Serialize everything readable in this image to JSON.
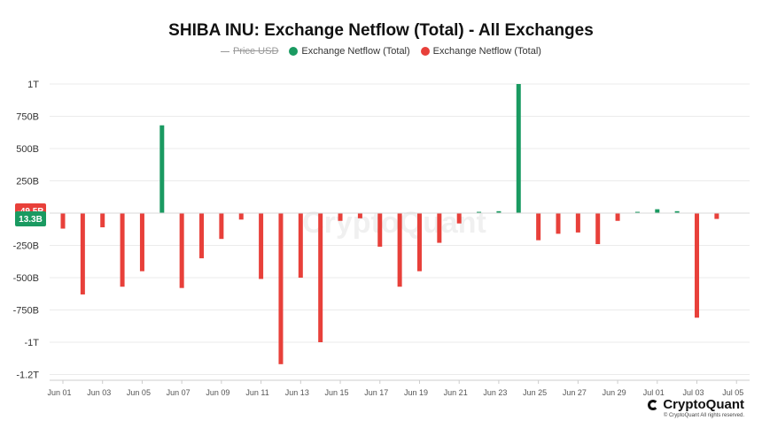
{
  "chart_data": {
    "type": "bar",
    "title": "SHIBA INU: Exchange Netflow (Total) - All Exchanges",
    "legend": [
      {
        "name": "Price USD",
        "style": "line",
        "color": "#999999",
        "hidden": true
      },
      {
        "name": "Exchange Netflow (Total)",
        "color": "#1a9a61"
      },
      {
        "name": "Exchange Netflow (Total)",
        "color": "#e8403a"
      }
    ],
    "x_tick_labels": [
      "Jun 01",
      "Jun 03",
      "Jun 05",
      "Jun 07",
      "Jun 09",
      "Jun 11",
      "Jun 13",
      "Jun 15",
      "Jun 17",
      "Jun 19",
      "Jun 21",
      "Jun 23",
      "Jun 25",
      "Jun 27",
      "Jun 29",
      "Jul 01",
      "Jul 03",
      "Jul 05"
    ],
    "y_tick_labels": [
      "1T",
      "750B",
      "500B",
      "250B",
      "0",
      "-250B",
      "-500B",
      "-750B",
      "-1T",
      "-1.2T"
    ],
    "y_tick_values": [
      1000,
      750,
      500,
      250,
      0,
      -250,
      -500,
      -750,
      -1000,
      -1250
    ],
    "ylim": [
      -1250,
      1000
    ],
    "unit": "B",
    "categories": [
      "Jun 01",
      "Jun 02",
      "Jun 03",
      "Jun 04",
      "Jun 05",
      "Jun 06",
      "Jun 07",
      "Jun 08",
      "Jun 09",
      "Jun 10",
      "Jun 11",
      "Jun 12",
      "Jun 13",
      "Jun 14",
      "Jun 15",
      "Jun 16",
      "Jun 17",
      "Jun 18",
      "Jun 19",
      "Jun 20",
      "Jun 21",
      "Jun 22",
      "Jun 23",
      "Jun 24",
      "Jun 25",
      "Jun 26",
      "Jun 27",
      "Jun 28",
      "Jun 29",
      "Jun 30",
      "Jul 01",
      "Jul 02",
      "Jul 03",
      "Jul 04"
    ],
    "values": [
      -120,
      -630,
      -110,
      -570,
      -450,
      680,
      -580,
      -350,
      -200,
      -50,
      -510,
      -1170,
      -500,
      -1000,
      -60,
      -40,
      -260,
      -570,
      -450,
      -230,
      -80,
      10,
      15,
      1000,
      -210,
      -160,
      -150,
      -240,
      -60,
      10,
      30,
      15,
      -810,
      -45
    ],
    "positive_color": "#1a9a61",
    "negative_color": "#e8403a",
    "grid": true,
    "watermark": "CryptoQuant",
    "current_value_tags": [
      {
        "label": "13.3B",
        "color": "#1a9a61"
      },
      {
        "label": "-49.5B",
        "color": "#e8403a"
      }
    ]
  },
  "brand": {
    "name": "CryptoQuant",
    "copyright": "© CryptoQuant All rights reserved."
  }
}
